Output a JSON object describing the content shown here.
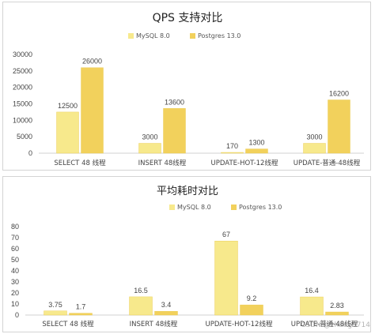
{
  "chart_data": [
    {
      "type": "bar",
      "title": "QPS 支持对比",
      "categories": [
        "SELECT 48 线程",
        "INSERT 48线程",
        "UPDATE-HOT-12线程",
        "UPDATE-普通-48线程"
      ],
      "series": [
        {
          "name": "MySQL 8.0",
          "values": [
            12500,
            3000,
            170,
            3000
          ],
          "labels": [
            "12500",
            "3000",
            "170",
            "3000"
          ],
          "color": "#f7e98c"
        },
        {
          "name": "Postgres 13.0",
          "values": [
            26000,
            13600,
            1300,
            16200
          ],
          "labels": [
            "26000",
            "13600",
            "1300",
            "16200"
          ],
          "color": "#f2d15c"
        }
      ],
      "ylim": [
        0,
        30000
      ],
      "yticks": [
        "0",
        "5000",
        "10000",
        "15000",
        "20000",
        "25000",
        "30000"
      ],
      "legend": "top-center",
      "grid": false
    },
    {
      "type": "bar",
      "title": "平均耗时对比",
      "categories": [
        "SELECT 48 线程",
        "INSERT 48线程",
        "UPDATE-HOT-12线程",
        "UPDATE-普通-48线程"
      ],
      "series": [
        {
          "name": "MySQL 8.0",
          "values": [
            3.75,
            16.5,
            67,
            16.4
          ],
          "labels": [
            "3.75",
            "16.5",
            "67",
            "16.4"
          ],
          "color": "#f7e98c"
        },
        {
          "name": "Postgres 13.0",
          "values": [
            1.7,
            3.4,
            9.2,
            2.83
          ],
          "labels": [
            "1.7",
            "3.4",
            "9.2",
            "2.83"
          ],
          "color": "#f2d15c"
        }
      ],
      "ylim": [
        0,
        80
      ],
      "yticks": [
        "0",
        "10",
        "20",
        "30",
        "40",
        "50",
        "60",
        "70",
        "80"
      ],
      "legend": "top-right",
      "grid": false
    }
  ],
  "watermark": "CSDN @zhang5714"
}
